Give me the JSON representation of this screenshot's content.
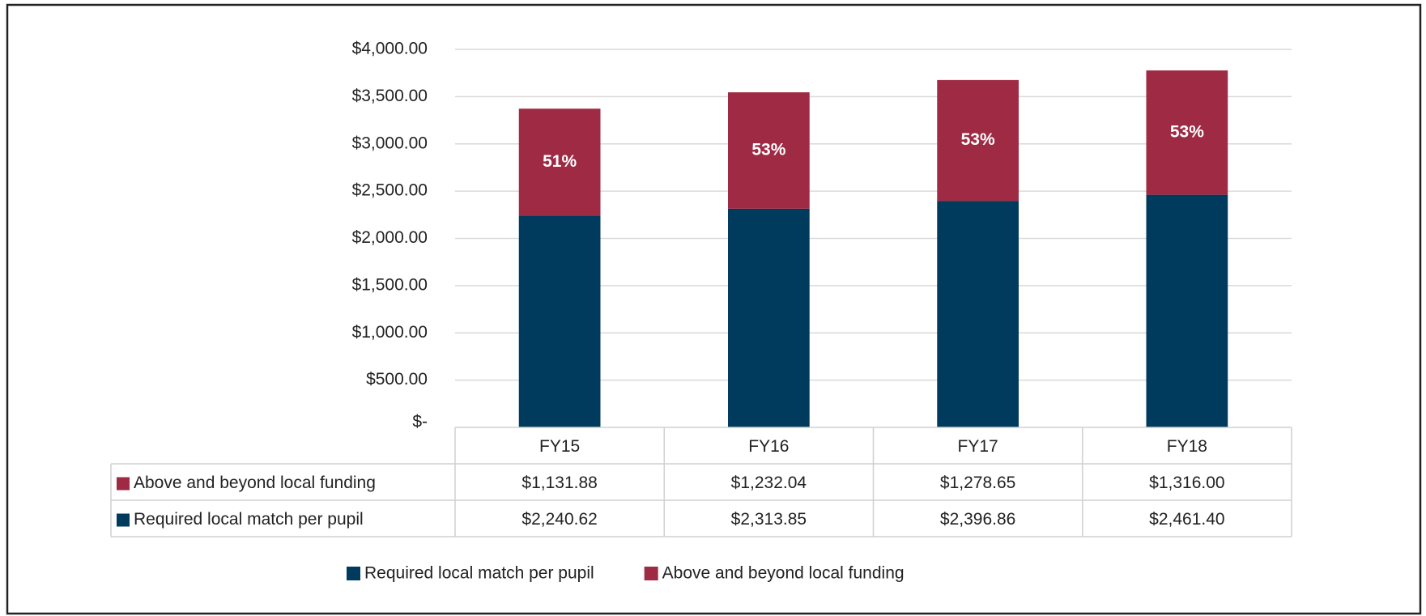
{
  "chart_data": {
    "type": "bar",
    "stacked": true,
    "categories": [
      "FY15",
      "FY16",
      "FY17",
      "FY18"
    ],
    "series": [
      {
        "name": "Required local match per pupil",
        "color": "#003a5c",
        "values": [
          2240.62,
          2313.85,
          2396.86,
          2461.4
        ],
        "value_labels": [
          "$2,240.62",
          "$2,313.85",
          "$2,396.86",
          "$2,461.40"
        ]
      },
      {
        "name": "Above and beyond local funding",
        "color": "#9e2a44",
        "values": [
          1131.88,
          1232.04,
          1278.65,
          1316.0
        ],
        "value_labels": [
          "$1,131.88",
          "$1,232.04",
          "$1,278.65",
          "$1,316.00"
        ],
        "percent_labels": [
          "51%",
          "53%",
          "53%",
          "53%"
        ]
      }
    ],
    "ylim": [
      0,
      4000
    ],
    "yticks": [
      {
        "value": 0,
        "label": "$-"
      },
      {
        "value": 500,
        "label": "$500.00"
      },
      {
        "value": 1000,
        "label": "$1,000.00"
      },
      {
        "value": 1500,
        "label": "$1,500.00"
      },
      {
        "value": 2000,
        "label": "$2,000.00"
      },
      {
        "value": 2500,
        "label": "$2,500.00"
      },
      {
        "value": 3000,
        "label": "$3,000.00"
      },
      {
        "value": 3500,
        "label": "$3,500.00"
      },
      {
        "value": 4000,
        "label": "$4,000.00"
      }
    ],
    "grid": true,
    "legend": "bottom",
    "data_table": true
  }
}
